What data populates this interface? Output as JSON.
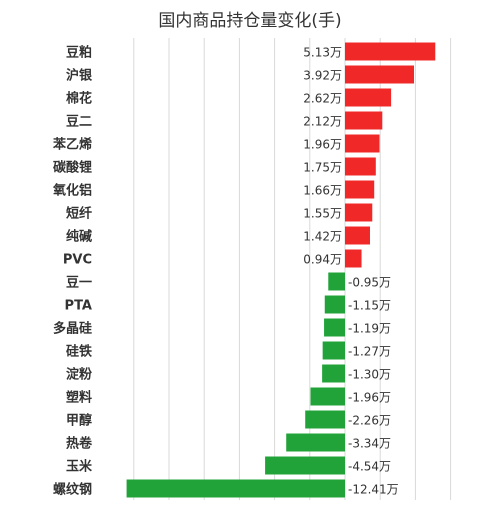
{
  "chart_data": {
    "type": "bar",
    "orientation": "horizontal",
    "title": "国内商品持仓量变化(手)",
    "unit_suffix": "万",
    "categories": [
      "豆粕",
      "沪银",
      "棉花",
      "豆二",
      "苯乙烯",
      "碳酸锂",
      "氧化铝",
      "短纤",
      "纯碱",
      "PVC",
      "豆一",
      "PTA",
      "多晶硅",
      "硅铁",
      "淀粉",
      "塑料",
      "甲醇",
      "热卷",
      "玉米",
      "螺纹钢"
    ],
    "values": [
      5.13,
      3.92,
      2.62,
      2.12,
      1.96,
      1.75,
      1.66,
      1.55,
      1.42,
      0.94,
      -0.95,
      -1.15,
      -1.19,
      -1.27,
      -1.3,
      -1.96,
      -2.26,
      -3.34,
      -4.54,
      -12.41
    ],
    "data_labels": [
      "5.13万",
      "3.92万",
      "2.62万",
      "2.12万",
      "1.96万",
      "1.75万",
      "1.66万",
      "1.55万",
      "1.42万",
      "0.94万",
      "-0.95万",
      "-1.15万",
      "-1.19万",
      "-1.27万",
      "-1.30万",
      "-1.96万",
      "-2.26万",
      "-3.34万",
      "-4.54万",
      "-12.41万"
    ],
    "colors": {
      "positive": "#f02828",
      "negative": "#22a33a",
      "grid": "#d9d9d9",
      "label": "#333333"
    },
    "grid": true,
    "legend": "none"
  }
}
